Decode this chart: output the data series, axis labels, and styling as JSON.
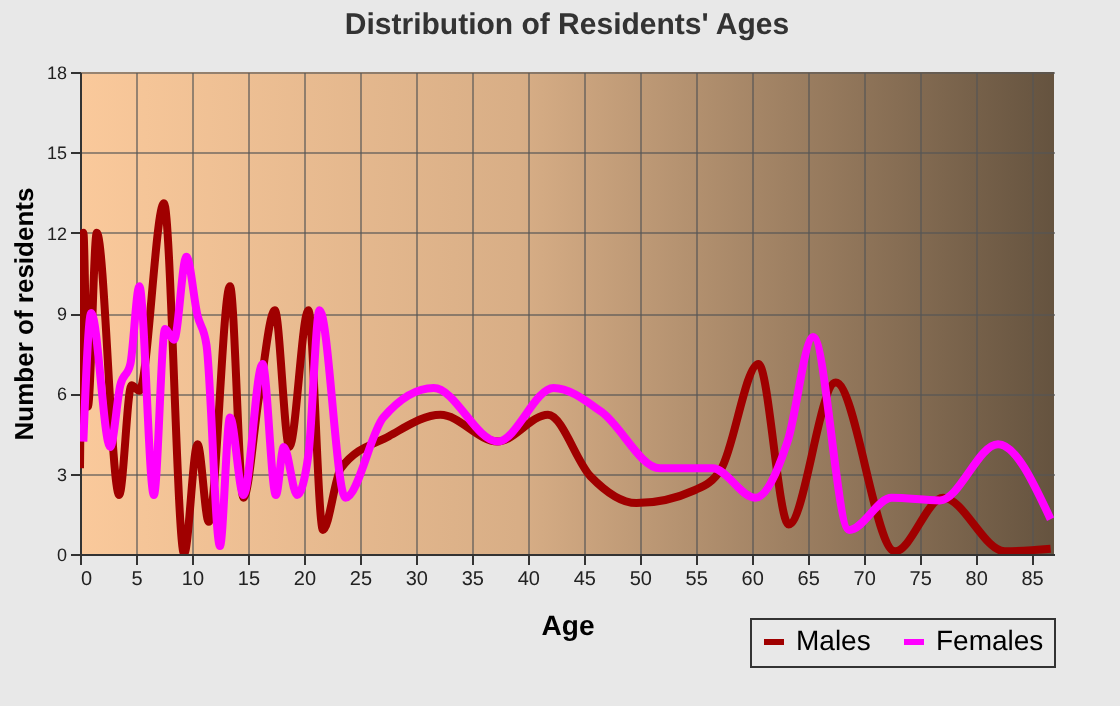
{
  "chart_data": {
    "type": "line",
    "title": "Distribution of Residents' Ages",
    "xlabel": "Age",
    "ylabel": "Number of residents",
    "xlim": [
      0,
      87
    ],
    "xticks": [
      0,
      5,
      10,
      15,
      20,
      25,
      30,
      35,
      40,
      45,
      50,
      55,
      60,
      65,
      70,
      75,
      80,
      85
    ],
    "ylim": [
      0,
      18
    ],
    "yticks": [
      0,
      3,
      6,
      9,
      12,
      15,
      18
    ],
    "grid": true,
    "legend": "bottom right",
    "marker": "none",
    "line_style": "solid",
    "series": [
      {
        "name": "Males",
        "color": "#a00000",
        "x": [
          0,
          0.3,
          0.7,
          1.5,
          3.5,
          4.6,
          5.3,
          7.5,
          9.3,
          10.5,
          11.5,
          13.4,
          14.6,
          16,
          17.4,
          18.7,
          20.4,
          21.7,
          23.3,
          27.6,
          32.2,
          37.3,
          41.8,
          45.6,
          49.7,
          55,
          57.3,
          60.6,
          63.3,
          67.5,
          72.8,
          77.1,
          82.6,
          86.7
        ],
        "values": [
          3.2,
          12,
          5.5,
          12,
          2.2,
          6.3,
          6.1,
          13.1,
          0,
          4.1,
          1.2,
          10,
          2.1,
          5.9,
          9.1,
          4,
          9.1,
          0.9,
          3.2,
          4.4,
          5.2,
          4.2,
          5.2,
          2.9,
          1.9,
          2.4,
          3.2,
          7.1,
          1.1,
          6.4,
          0.1,
          2.1,
          0.1,
          0.2
        ]
      },
      {
        "name": "Females",
        "color": "#ff00ff",
        "x": [
          0.3,
          1,
          2.7,
          3.6,
          4.5,
          5.3,
          6.6,
          7.6,
          8.4,
          9.5,
          10.5,
          11.3,
          12.5,
          13.4,
          14.6,
          16.3,
          17.5,
          18.2,
          19.4,
          20.4,
          21.4,
          23.7,
          27.1,
          31.6,
          37.3,
          42.3,
          46.6,
          51.8,
          56.5,
          60.3,
          63.2,
          65.5,
          68.7,
          72.5,
          76.8,
          82,
          86.7
        ],
        "values": [
          4.2,
          9,
          4,
          6.3,
          7.1,
          10,
          2.2,
          8.4,
          8,
          11.1,
          8.9,
          7.8,
          0.3,
          5.1,
          2.2,
          7.1,
          2.2,
          4,
          2.2,
          3.7,
          9.1,
          2.1,
          5.1,
          6.2,
          4.2,
          6.2,
          5.3,
          3.2,
          3.2,
          2.1,
          4.2,
          8.1,
          0.9,
          2.1,
          2,
          4.1,
          1.3
        ]
      }
    ]
  }
}
